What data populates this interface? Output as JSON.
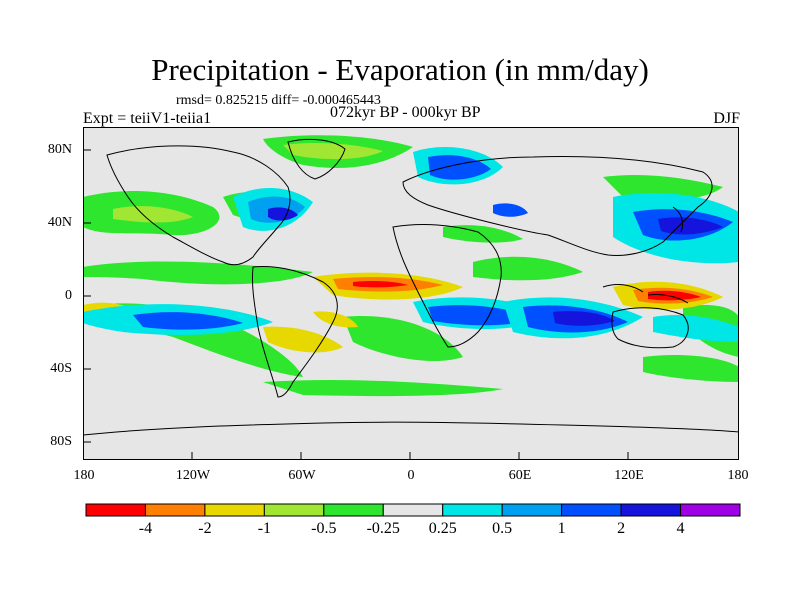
{
  "title": "Precipitation - Evaporation (in mm/day)",
  "stats": "rmsd= 0.825215 diff= -0.000465443",
  "experiment": "Expt = teiiV1-teiia1",
  "period": "072kyr BP - 000kyr BP",
  "season": "DJF",
  "x_ticks": [
    "180",
    "120W",
    "60W",
    "0",
    "60E",
    "120E",
    "180"
  ],
  "y_ticks": [
    "80N",
    "40N",
    "0",
    "40S",
    "80S"
  ],
  "legend": {
    "colors": [
      "#ff0000",
      "#ff8000",
      "#e6d800",
      "#a0e632",
      "#2ee62e",
      "#e6e6e6",
      "#00e6e6",
      "#00a0f0",
      "#0050ff",
      "#1414dc",
      "#a000e6"
    ],
    "labels": [
      "-4",
      "-2",
      "-1",
      "-0.5",
      "-0.25",
      "0.25",
      "0.5",
      "1",
      "2",
      "4"
    ]
  },
  "colors": {
    "background": "#e6e6e6",
    "coast": "#000000"
  }
}
